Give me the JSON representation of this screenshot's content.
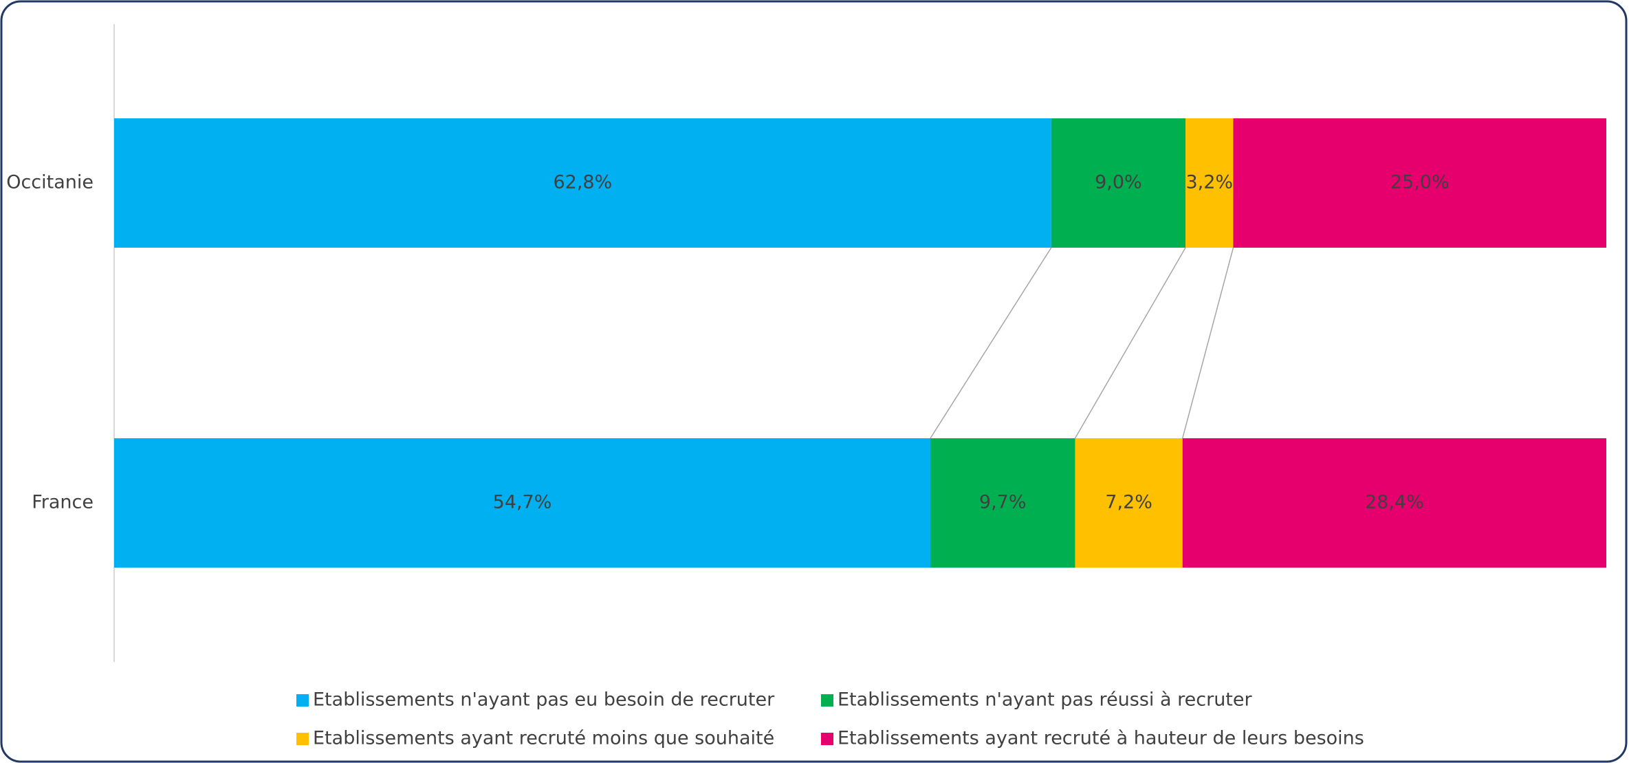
{
  "chart_data": {
    "type": "stacked_barh",
    "categories": [
      "Occitanie",
      "France"
    ],
    "series": [
      {
        "name": "Etablissements n'ayant pas eu besoin de recruter",
        "color": "#00b0f0",
        "values": [
          62.8,
          54.7
        ],
        "value_labels": [
          "62,8%",
          "54,7%"
        ]
      },
      {
        "name": "Etablissements n'ayant pas réussi à recruter",
        "color": "#00b050",
        "values": [
          9.0,
          9.7
        ],
        "value_labels": [
          "9,0%",
          "9,7%"
        ]
      },
      {
        "name": "Etablissements ayant recruté moins que souhaité",
        "color": "#ffc000",
        "values": [
          3.2,
          7.2
        ],
        "value_labels": [
          "3,2%",
          "7,2%"
        ]
      },
      {
        "name": "Etablissements ayant recruté à hauteur de leurs besoins",
        "color": "#e6006e",
        "values": [
          25.0,
          28.4
        ],
        "value_labels": [
          "25,0%",
          "28,4%"
        ]
      }
    ]
  }
}
